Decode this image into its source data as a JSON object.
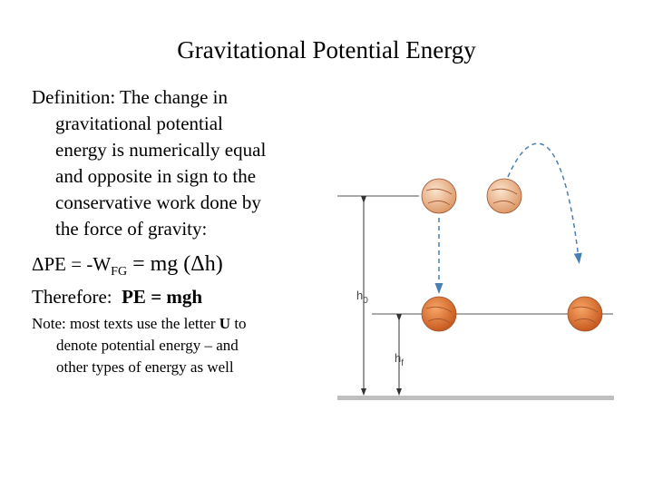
{
  "title": "Gravitational Potential Energy",
  "definition": {
    "lines": [
      "Definition: The change in",
      "gravitational potential",
      "energy is numerically equal",
      "and opposite in sign to the",
      "conservative work done by",
      "the force of gravity:"
    ]
  },
  "equation": {
    "left": "ΔPE = -W",
    "subscript": "FG",
    "right": " = mg (Δh)"
  },
  "therefore": {
    "label": "Therefore:",
    "formula": "PE = mgh"
  },
  "note": {
    "lines": [
      [
        "Note:  most texts use the letter ",
        "U",
        " to"
      ],
      [
        "denote potential energy – and"
      ],
      [
        "other types of energy as well"
      ]
    ]
  },
  "diagram": {
    "h0": {
      "base": "h",
      "sub": "0"
    },
    "hf": {
      "base": "h",
      "sub": "f"
    }
  }
}
